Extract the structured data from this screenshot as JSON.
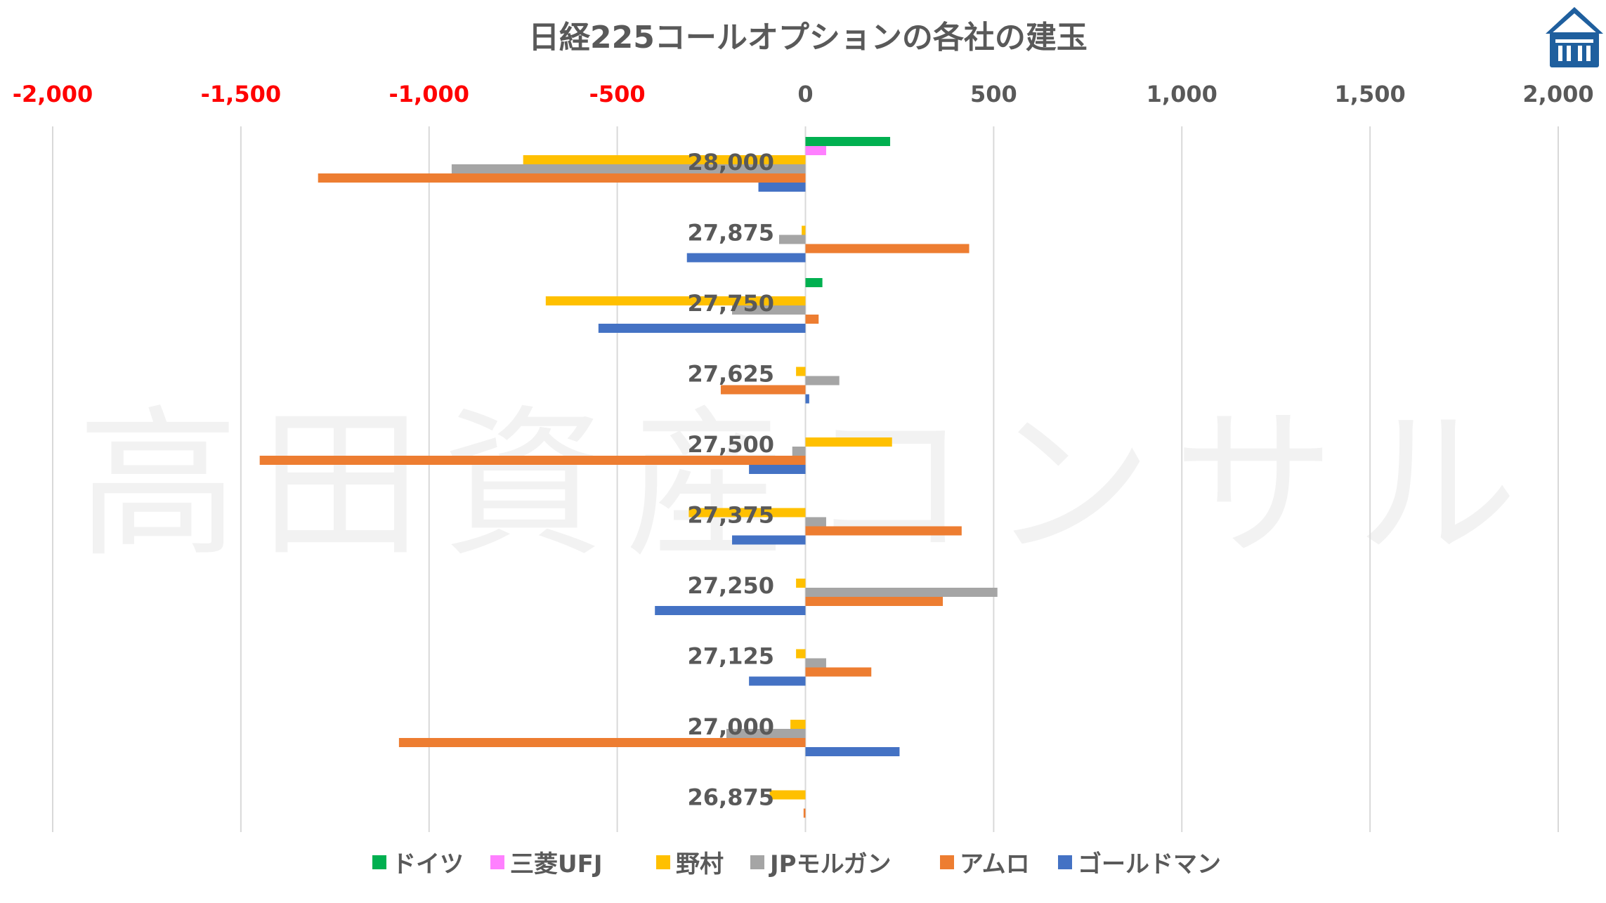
{
  "watermark": "高田資産コンサル",
  "logo": {
    "name": "house-logo-icon",
    "color": "#1f5f9e"
  },
  "chart_data": {
    "type": "bar",
    "orientation": "horizontal",
    "title": "日経225コールオプションの各社の建玉",
    "xlim": [
      -2000,
      2000
    ],
    "x_ticks": [
      -2000,
      -1500,
      -1000,
      -500,
      0,
      500,
      1000,
      1500,
      2000
    ],
    "x_tick_labels": [
      "-2,000",
      "-1,500",
      "-1,000",
      "-500",
      "0",
      "500",
      "1,000",
      "1,500",
      "2,000"
    ],
    "negative_tick_color": "#ff0000",
    "positive_tick_color": "#595959",
    "grid": "vertical",
    "legend_position": "bottom",
    "categories": [
      "28,000",
      "27,875",
      "27,750",
      "27,625",
      "27,500",
      "27,375",
      "27,250",
      "27,125",
      "27,000",
      "26,875"
    ],
    "series": [
      {
        "name": "ドイツ",
        "color": "#00b050",
        "values": [
          225,
          0,
          45,
          0,
          0,
          0,
          0,
          0,
          0,
          0
        ]
      },
      {
        "name": "三菱UFJ",
        "color": "#ff80ff",
        "values": [
          55,
          0,
          0,
          0,
          0,
          0,
          0,
          0,
          0,
          0
        ]
      },
      {
        "name": "野村",
        "color": "#ffc000",
        "values": [
          -750,
          -10,
          -690,
          -25,
          230,
          -310,
          -25,
          -25,
          -40,
          -95
        ]
      },
      {
        "name": "JPモルガン",
        "color": "#a5a5a5",
        "values": [
          -940,
          -70,
          -195,
          90,
          -35,
          55,
          510,
          55,
          -210,
          0
        ]
      },
      {
        "name": "アムロ",
        "color": "#ed7d31",
        "values": [
          -1295,
          435,
          35,
          -225,
          -1450,
          415,
          365,
          175,
          -1080,
          -5
        ]
      },
      {
        "name": "ゴールドマン",
        "color": "#4472c4",
        "values": [
          -125,
          -315,
          -550,
          10,
          -150,
          -195,
          -400,
          -150,
          250,
          0
        ]
      }
    ]
  }
}
